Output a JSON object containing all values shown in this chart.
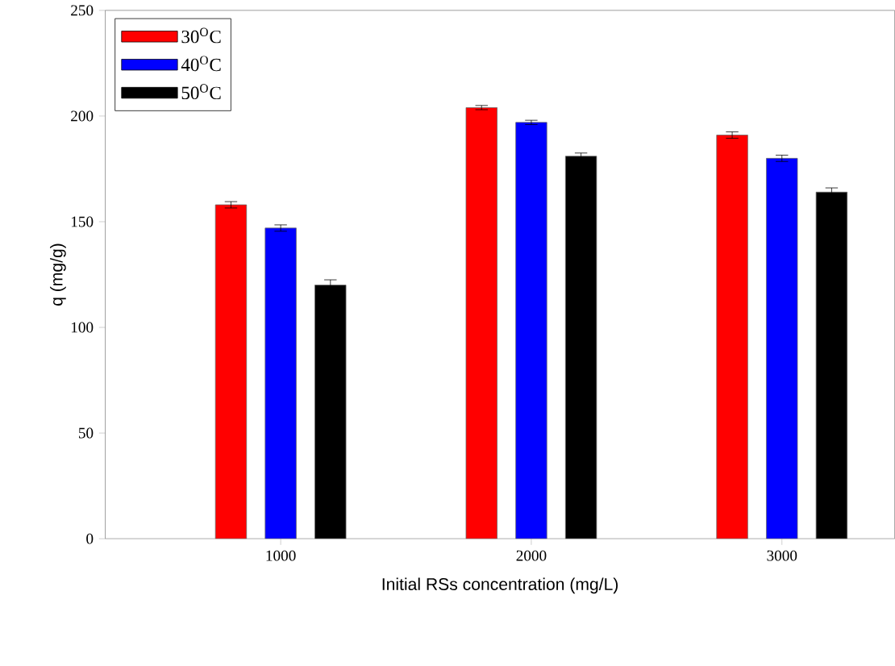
{
  "chart_data": {
    "type": "bar",
    "xlabel": "Initial RSs concentration (mg/L)",
    "ylabel": "q (mg/g)",
    "categories": [
      "1000",
      "2000",
      "3000"
    ],
    "series": [
      {
        "name": "30$^{O}$C",
        "color": "#ff0000",
        "values": [
          158,
          204,
          191
        ],
        "errors": [
          1.5,
          1,
          1.5
        ]
      },
      {
        "name": "40$^{O}$C",
        "color": "#0000ff",
        "values": [
          147,
          197,
          180
        ],
        "errors": [
          1.5,
          1,
          1.5
        ]
      },
      {
        "name": "50$^{O}$C",
        "color": "#000000",
        "values": [
          120,
          181,
          164
        ],
        "errors": [
          2.5,
          1.5,
          2
        ]
      }
    ],
    "ylim": [
      0,
      250
    ],
    "yticks": [
      0,
      50,
      100,
      150,
      200,
      250
    ],
    "grid": false,
    "legend": "top left"
  }
}
